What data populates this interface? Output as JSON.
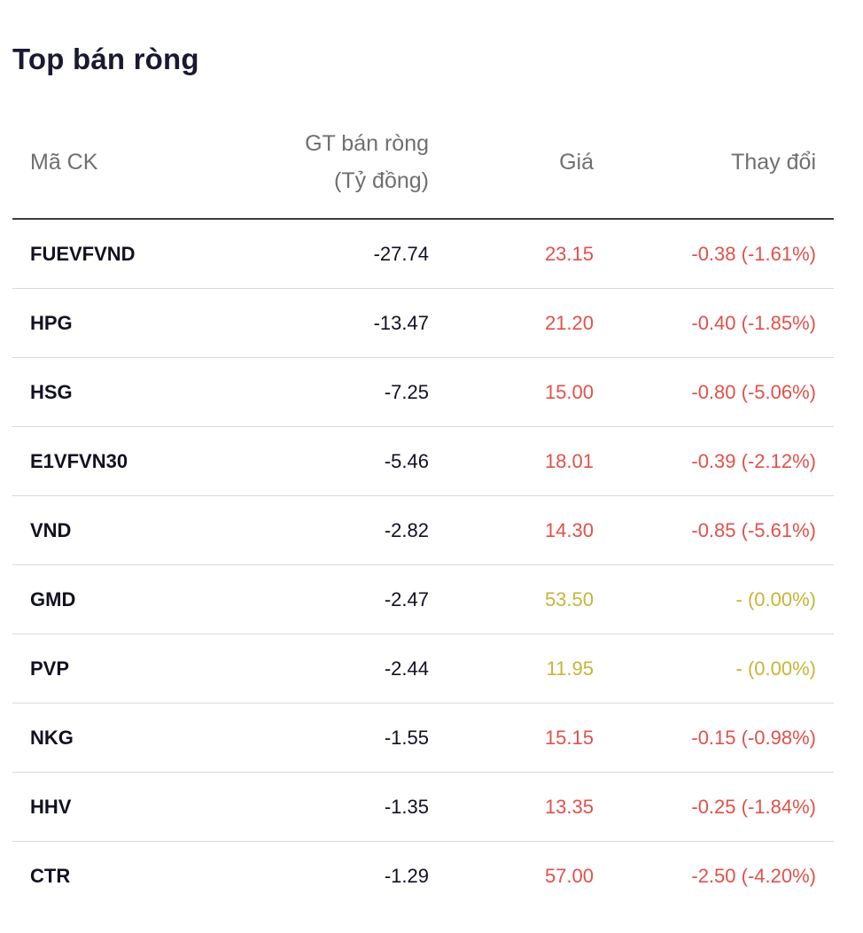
{
  "title": "Top bán ròng",
  "columns": {
    "symbol": "Mã CK",
    "value_line1": "GT bán ròng",
    "value_line2": "(Tỷ đồng)",
    "price": "Giá",
    "change": "Thay đổi"
  },
  "rows": [
    {
      "symbol": "FUEVFVND",
      "value": "-27.74",
      "price": "23.15",
      "change": "-0.38 (-1.61%)",
      "status": "down"
    },
    {
      "symbol": "HPG",
      "value": "-13.47",
      "price": "21.20",
      "change": "-0.40 (-1.85%)",
      "status": "down"
    },
    {
      "symbol": "HSG",
      "value": "-7.25",
      "price": "15.00",
      "change": "-0.80 (-5.06%)",
      "status": "down"
    },
    {
      "symbol": "E1VFVN30",
      "value": "-5.46",
      "price": "18.01",
      "change": "-0.39 (-2.12%)",
      "status": "down"
    },
    {
      "symbol": "VND",
      "value": "-2.82",
      "price": "14.30",
      "change": "-0.85 (-5.61%)",
      "status": "down"
    },
    {
      "symbol": "GMD",
      "value": "-2.47",
      "price": "53.50",
      "change": "- (0.00%)",
      "status": "flat"
    },
    {
      "symbol": "PVP",
      "value": "-2.44",
      "price": "11.95",
      "change": "- (0.00%)",
      "status": "flat"
    },
    {
      "symbol": "NKG",
      "value": "-1.55",
      "price": "15.15",
      "change": "-0.15 (-0.98%)",
      "status": "down"
    },
    {
      "symbol": "HHV",
      "value": "-1.35",
      "price": "13.35",
      "change": "-0.25 (-1.84%)",
      "status": "down"
    },
    {
      "symbol": "CTR",
      "value": "-1.29",
      "price": "57.00",
      "change": "-2.50 (-4.20%)",
      "status": "down"
    }
  ],
  "colors": {
    "down": "#e2514a",
    "flat": "#c7b43a",
    "text": "#111122",
    "header_text": "#6f6f6f"
  }
}
